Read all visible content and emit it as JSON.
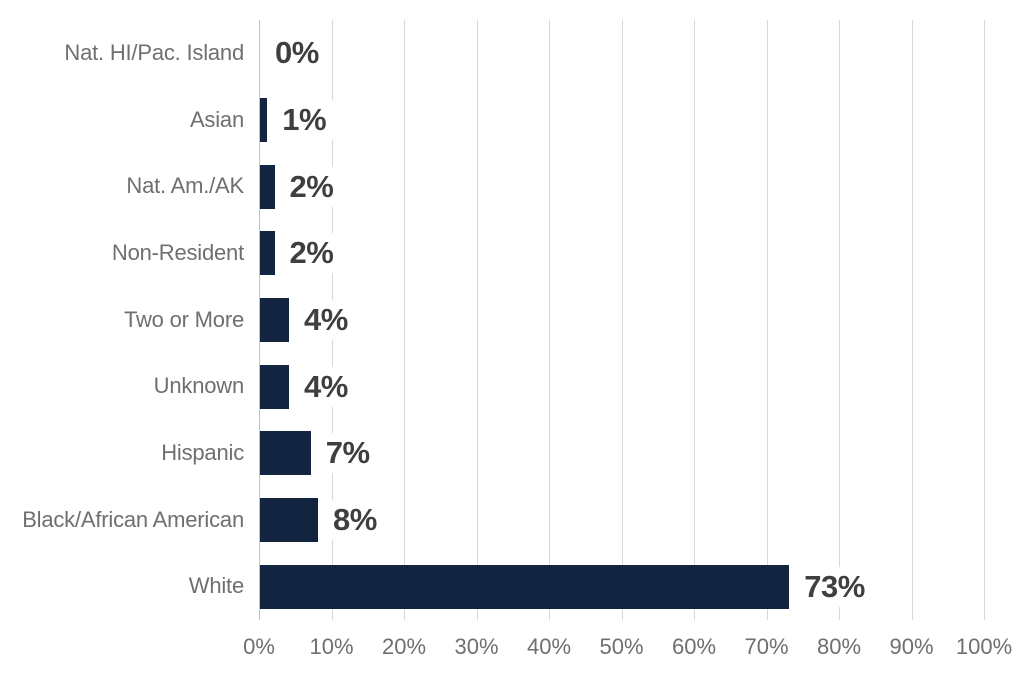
{
  "chart_data": {
    "type": "bar",
    "orientation": "horizontal",
    "title": "",
    "xlabel": "",
    "ylabel": "",
    "categories": [
      "Nat. HI/Pac. Island",
      "Asian",
      "Nat. Am./AK",
      "Non-Resident",
      "Two or More",
      "Unknown",
      "Hispanic",
      "Black/African American",
      "White"
    ],
    "values": [
      0,
      1,
      2,
      2,
      4,
      4,
      7,
      8,
      73
    ],
    "data_labels": [
      "0%",
      "1%",
      "2%",
      "2%",
      "4%",
      "4%",
      "7%",
      "8%",
      "73%"
    ],
    "x_axis_ticks": [
      "0%",
      "10%",
      "20%",
      "30%",
      "40%",
      "50%",
      "60%",
      "70%",
      "80%",
      "90%",
      "100%"
    ],
    "xlim": [
      0,
      100
    ],
    "grid": true,
    "legend": false,
    "colors": {
      "bar": "#122440",
      "category_label": "#6f6f6f",
      "value_label": "#3f3f3f",
      "tick_label": "#6f6f6f",
      "gridline": "#d9d9d9",
      "axis_line": "#c3c3c3",
      "background": "#ffffff"
    }
  }
}
